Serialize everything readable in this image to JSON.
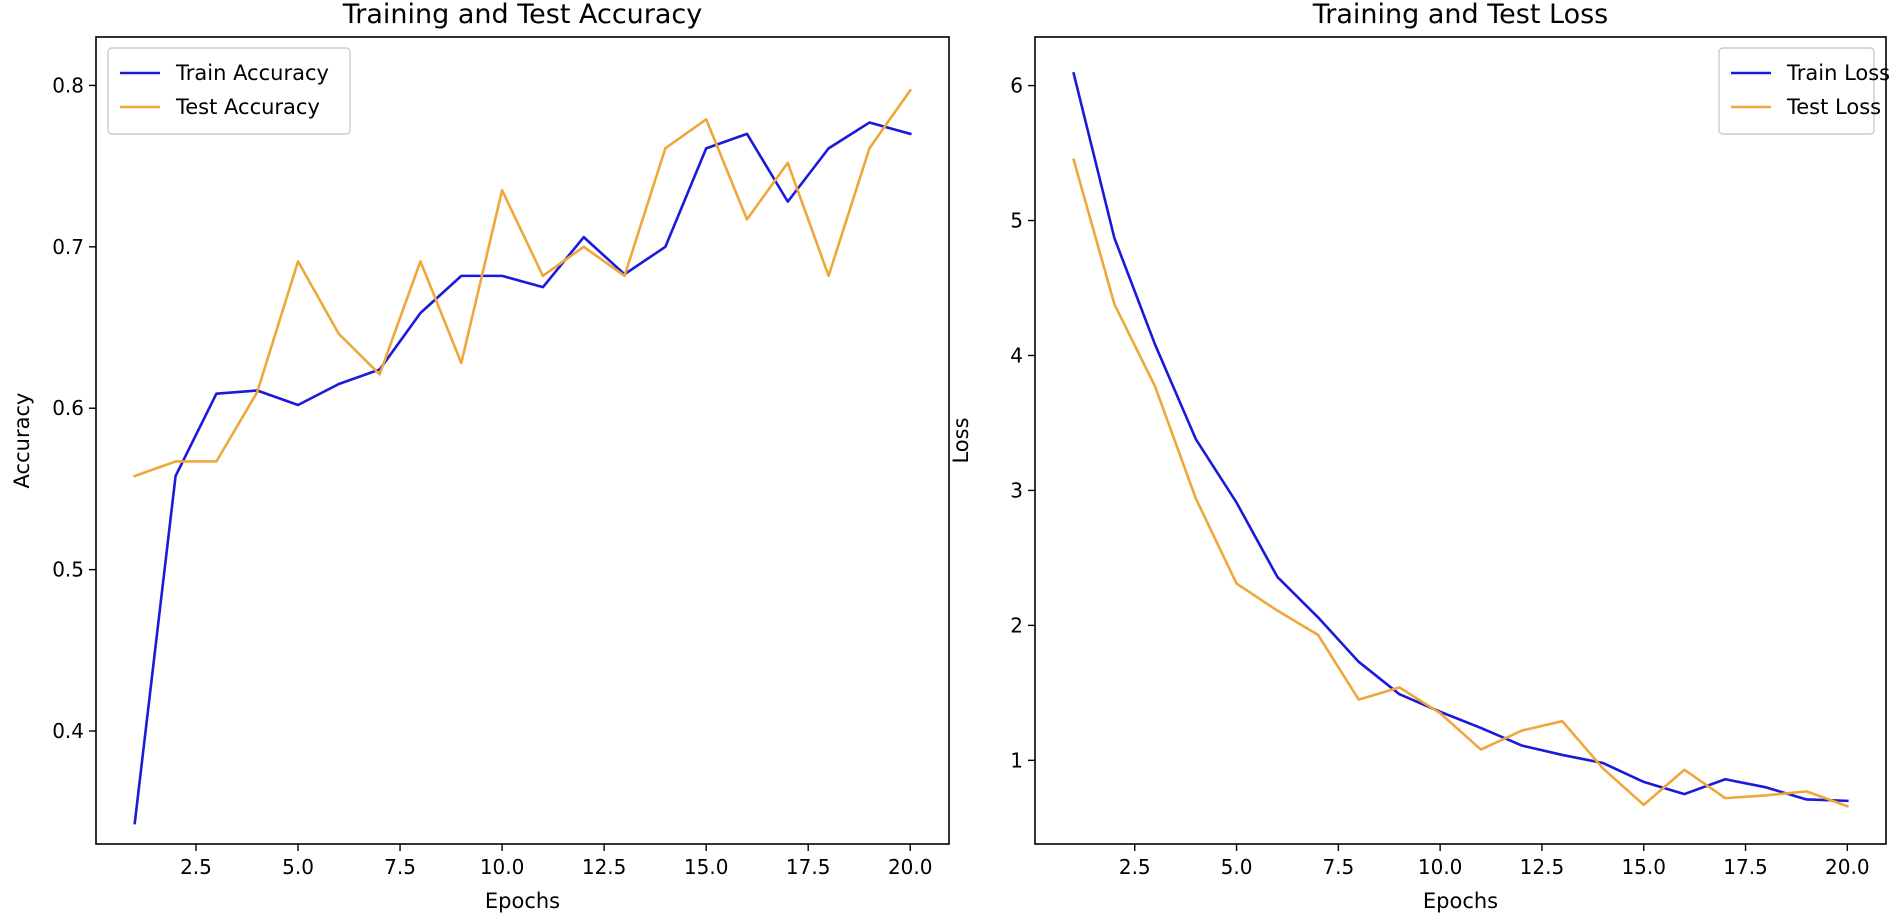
{
  "chart_data": [
    {
      "type": "line",
      "title": "Training and Test Accuracy",
      "xlabel": "Epochs",
      "ylabel": "Accuracy",
      "xlim": [
        0.05,
        20.95
      ],
      "ylim": [
        0.33,
        0.83
      ],
      "xticks": [
        2.5,
        5.0,
        7.5,
        10.0,
        12.5,
        15.0,
        17.5,
        20.0
      ],
      "xtick_labels": [
        "2.5",
        "5.0",
        "7.5",
        "10.0",
        "12.5",
        "15.0",
        "17.5",
        "20.0"
      ],
      "yticks": [
        0.4,
        0.5,
        0.6,
        0.7,
        0.8
      ],
      "ytick_labels": [
        "0.4",
        "0.5",
        "0.6",
        "0.7",
        "0.8"
      ],
      "legend_position": "top-left",
      "grid": false,
      "x": [
        1,
        2,
        3,
        4,
        5,
        6,
        7,
        8,
        9,
        10,
        11,
        12,
        13,
        14,
        15,
        16,
        17,
        18,
        19,
        20
      ],
      "series": [
        {
          "name": "Train Accuracy",
          "color": "#1a1adb",
          "values": [
            0.343,
            0.558,
            0.609,
            0.611,
            0.602,
            0.615,
            0.624,
            0.659,
            0.682,
            0.682,
            0.675,
            0.706,
            0.683,
            0.7,
            0.761,
            0.77,
            0.728,
            0.761,
            0.777,
            0.77
          ]
        },
        {
          "name": "Test Accuracy",
          "color": "#f0a73a",
          "values": [
            0.558,
            0.567,
            0.567,
            0.61,
            0.691,
            0.646,
            0.621,
            0.691,
            0.628,
            0.735,
            0.682,
            0.7,
            0.682,
            0.761,
            0.779,
            0.717,
            0.752,
            0.682,
            0.761,
            0.797
          ]
        }
      ]
    },
    {
      "type": "line",
      "title": "Training and Test Loss",
      "xlabel": "Epochs",
      "ylabel": "Loss",
      "xlim": [
        0.05,
        20.95
      ],
      "ylim": [
        0.38,
        6.36
      ],
      "xticks": [
        2.5,
        5.0,
        7.5,
        10.0,
        12.5,
        15.0,
        17.5,
        20.0
      ],
      "xtick_labels": [
        "2.5",
        "5.0",
        "7.5",
        "10.0",
        "12.5",
        "15.0",
        "17.5",
        "20.0"
      ],
      "yticks": [
        1,
        2,
        3,
        4,
        5,
        6
      ],
      "ytick_labels": [
        "1",
        "2",
        "3",
        "4",
        "5",
        "6"
      ],
      "legend_position": "top-right",
      "grid": false,
      "x": [
        1,
        2,
        3,
        4,
        5,
        6,
        7,
        8,
        9,
        10,
        11,
        12,
        13,
        14,
        15,
        16,
        17,
        18,
        19,
        20
      ],
      "series": [
        {
          "name": "Train Loss",
          "color": "#1a1adb",
          "values": [
            6.09,
            4.87,
            4.08,
            3.38,
            2.91,
            2.36,
            2.06,
            1.73,
            1.49,
            1.36,
            1.24,
            1.11,
            1.04,
            0.98,
            0.84,
            0.75,
            0.86,
            0.8,
            0.71,
            0.7
          ]
        },
        {
          "name": "Test Loss",
          "color": "#f0a73a",
          "values": [
            5.45,
            4.38,
            3.77,
            2.94,
            2.31,
            2.11,
            1.93,
            1.45,
            1.54,
            1.35,
            1.08,
            1.22,
            1.29,
            0.94,
            0.67,
            0.93,
            0.72,
            0.74,
            0.77,
            0.66
          ]
        }
      ]
    }
  ]
}
